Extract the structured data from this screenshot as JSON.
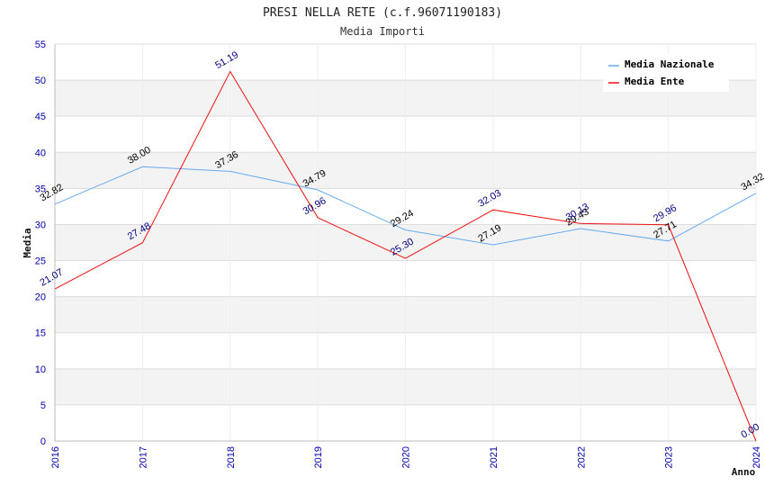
{
  "chart_data": {
    "type": "line",
    "title": "PRESI NELLA RETE (c.f.96071190183)",
    "subtitle": "Media Importi",
    "xlabel": "Anno",
    "ylabel": "Media",
    "x": [
      "2016",
      "2017",
      "2018",
      "2019",
      "2020",
      "2021",
      "2022",
      "2023",
      "2024"
    ],
    "ylim": [
      0,
      55
    ],
    "yticks": [
      0,
      5,
      10,
      15,
      20,
      25,
      30,
      35,
      40,
      45,
      50,
      55
    ],
    "legend_position": "top-right",
    "grid": true,
    "series": [
      {
        "name": "Media Nazionale",
        "color": "#66aaee",
        "values": [
          32.82,
          38.0,
          37.36,
          34.79,
          29.24,
          27.19,
          29.43,
          27.71,
          34.32
        ],
        "labels": [
          "32.82",
          "38.00",
          "37.36",
          "34.79",
          "29.24",
          "27.19",
          "29.43",
          "27.71",
          "34.32"
        ]
      },
      {
        "name": "Media Ente",
        "color": "#ee1111",
        "values": [
          21.07,
          27.48,
          51.19,
          30.96,
          25.3,
          32.03,
          30.13,
          29.96,
          0.0
        ],
        "labels": [
          "21.07",
          "27.48",
          "51.19",
          "30.96",
          "25.30",
          "32.03",
          "30.13",
          "29.96",
          "0.00"
        ]
      }
    ]
  }
}
